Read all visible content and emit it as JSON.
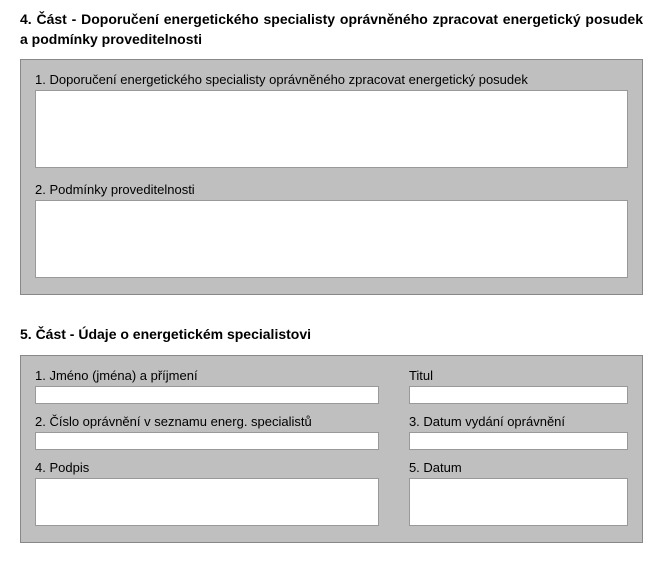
{
  "section4": {
    "title": "4. Část - Doporučení energetického specialisty oprávněného zpracovat energetický posudek a podmínky proveditelnosti",
    "field1_label": "1. Doporučení energetického specialisty oprávněného zpracovat energetický posudek",
    "field1_value": "",
    "field2_label": "2. Podmínky proveditelnosti",
    "field2_value": ""
  },
  "section5": {
    "title": "5. Část - Údaje o energetickém specialistovi",
    "field1_label": "1. Jméno (jména) a příjmení",
    "field1_value": "",
    "field_title_label": "Titul",
    "field_title_value": "",
    "field2_label": "2. Číslo oprávnění v seznamu energ. specialistů",
    "field2_value": "",
    "field3_label": "3. Datum vydání oprávnění",
    "field3_value": "",
    "field4_label": "4. Podpis",
    "field4_value": "",
    "field5_label": "5. Datum",
    "field5_value": ""
  },
  "colors": {
    "panel_bg": "#bfbfbf",
    "input_bg": "#ffffff",
    "border": "#888888",
    "text": "#000000"
  }
}
